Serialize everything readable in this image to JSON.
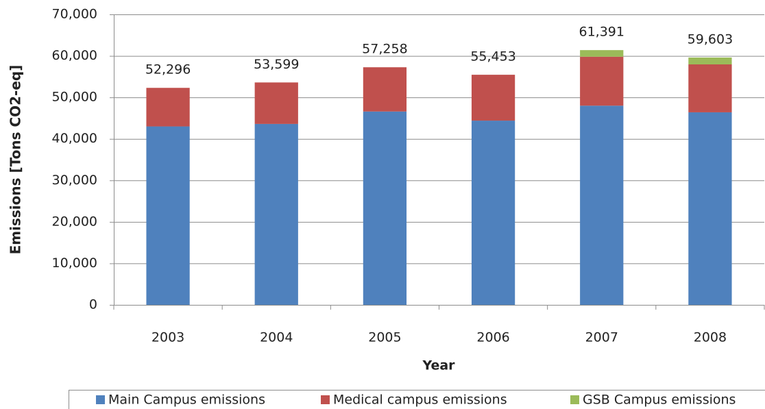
{
  "chart_data": {
    "type": "stacked_bar",
    "x_label": "Year",
    "y_label": "Emissions [Tons CO2-eq]",
    "categories": [
      "2003",
      "2004",
      "2005",
      "2006",
      "2007",
      "2008"
    ],
    "series": [
      {
        "name": "Main Campus emissions",
        "color": "#4f81bd",
        "values": [
          43000,
          43600,
          46600,
          44400,
          48000,
          46400
        ]
      },
      {
        "name": "Medical campus emissions",
        "color": "#c0504d",
        "values": [
          9296,
          9999,
          10658,
          11053,
          11800,
          11550
        ]
      },
      {
        "name": "GSB Campus emissions",
        "color": "#9bbb59",
        "values": [
          0,
          0,
          0,
          0,
          1591,
          1653
        ]
      }
    ],
    "totals": {
      "values": [
        52296,
        53599,
        57258,
        55453,
        61391,
        59603
      ],
      "value_labels": [
        "52,296",
        "53,599",
        "57,258",
        "55,453",
        "61,391",
        "59,603"
      ]
    },
    "ylim": [
      0,
      70000
    ],
    "yticks": [
      0,
      {
        "value": 10000,
        "label": "10,000"
      },
      {
        "value": 20000,
        "label": "20,000"
      },
      {
        "value": 30000,
        "label": "30,000"
      },
      {
        "value": 40000,
        "label": "40,000"
      },
      {
        "value": 50000,
        "label": "50,000"
      },
      {
        "value": 60000,
        "label": "60,000"
      },
      {
        "value": 70000,
        "label": "70,000"
      }
    ],
    "grid": true,
    "legend": "bottom"
  }
}
